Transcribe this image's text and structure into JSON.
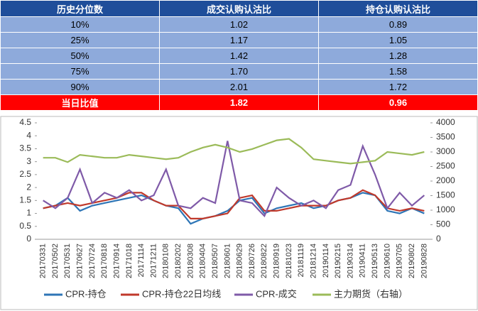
{
  "table": {
    "header": [
      "历史分位数",
      "成交认购认沽比",
      "持仓认购认沽比"
    ],
    "rows": [
      [
        "10%",
        "1.02",
        "0.89"
      ],
      [
        "25%",
        "1.17",
        "1.05"
      ],
      [
        "50%",
        "1.42",
        "1.28"
      ],
      [
        "75%",
        "1.70",
        "1.58"
      ],
      [
        "90%",
        "2.01",
        "1.72"
      ]
    ],
    "today": [
      "当日比值",
      "1.82",
      "0.96"
    ]
  },
  "chart_data": {
    "type": "line",
    "categories": [
      "20170331",
      "20170502",
      "20170531",
      "20170627",
      "20170724",
      "20170818",
      "20170914",
      "20171018",
      "20171114",
      "20171211",
      "20180108",
      "20180202",
      "20180308",
      "20180404",
      "20180507",
      "20180601",
      "20180629",
      "20180726",
      "20180822",
      "20180919",
      "20181023",
      "20181119",
      "20181214",
      "20190114",
      "20190215",
      "20190314",
      "20190411",
      "20190513",
      "20190610",
      "20190705",
      "20190802",
      "20190828"
    ],
    "series": [
      {
        "name": "CPR-持仓",
        "color": "#2e75b6",
        "values": [
          1.2,
          1.3,
          1.6,
          1.1,
          1.3,
          1.4,
          1.5,
          1.6,
          1.7,
          1.5,
          1.3,
          1.2,
          0.6,
          0.8,
          0.9,
          1.1,
          1.5,
          1.6,
          1.0,
          1.2,
          1.3,
          1.4,
          1.2,
          1.3,
          1.5,
          1.6,
          1.8,
          1.7,
          1.1,
          1.0,
          1.2,
          1.0
        ]
      },
      {
        "name": "CPR-持仓22日均线",
        "color": "#c0392b",
        "values": [
          1.2,
          1.3,
          1.4,
          1.3,
          1.4,
          1.5,
          1.6,
          1.8,
          1.8,
          1.5,
          1.3,
          1.3,
          0.8,
          0.8,
          0.9,
          1.0,
          1.6,
          1.7,
          1.1,
          1.1,
          1.2,
          1.3,
          1.3,
          1.3,
          1.5,
          1.6,
          1.9,
          1.7,
          1.2,
          1.1,
          1.2,
          1.1
        ]
      },
      {
        "name": "CPR-成交",
        "color": "#7f5aa8",
        "values": [
          1.5,
          1.2,
          1.6,
          2.7,
          1.4,
          1.8,
          1.6,
          1.9,
          1.5,
          1.7,
          2.7,
          1.3,
          1.2,
          1.6,
          1.4,
          3.8,
          1.5,
          1.4,
          0.9,
          2.0,
          1.6,
          1.3,
          1.5,
          1.2,
          1.9,
          2.1,
          3.6,
          2.5,
          1.2,
          1.8,
          1.3,
          1.7
        ]
      },
      {
        "name": "主力期货（右轴）",
        "color": "#9bbb59",
        "axis": "y2",
        "values": [
          2800,
          2800,
          2650,
          2900,
          2850,
          2800,
          2800,
          2900,
          2850,
          2800,
          2750,
          2800,
          3000,
          3150,
          3250,
          3150,
          3000,
          3100,
          3250,
          3400,
          3450,
          3150,
          2750,
          2700,
          2650,
          2600,
          2650,
          2700,
          3000,
          2950,
          2900,
          3000
        ]
      }
    ],
    "ylim": [
      0,
      4.5
    ],
    "yticks": [
      0,
      0.5,
      1,
      1.5,
      2,
      2.5,
      3,
      3.5,
      4,
      4.5
    ],
    "y2lim": [
      0,
      4000
    ],
    "y2ticks": [
      0,
      500,
      1000,
      1500,
      2000,
      2500,
      3000,
      3500,
      4000
    ],
    "grid": false,
    "legend": "bottom"
  }
}
